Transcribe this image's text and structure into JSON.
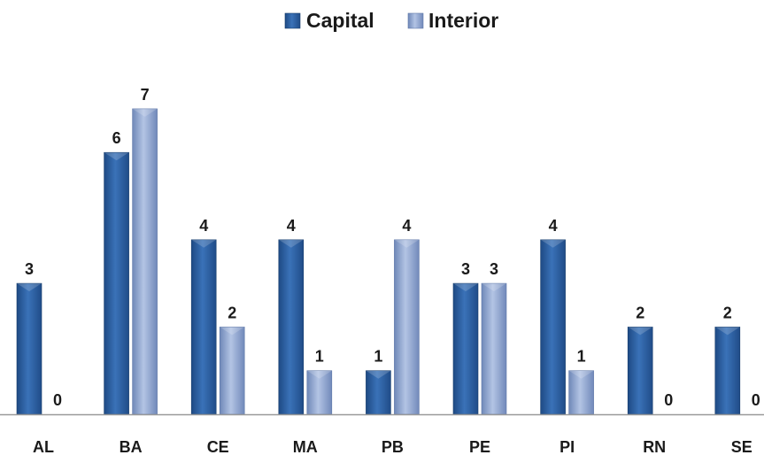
{
  "chart_data": {
    "type": "bar",
    "categories": [
      "AL",
      "BA",
      "CE",
      "MA",
      "PB",
      "PE",
      "PI",
      "RN",
      "SE"
    ],
    "series": [
      {
        "name": "Capital",
        "values": [
          3,
          6,
          4,
          4,
          1,
          3,
          4,
          2,
          2
        ],
        "color": "#2f5f9e"
      },
      {
        "name": "Interior",
        "values": [
          0,
          7,
          2,
          1,
          4,
          3,
          1,
          0,
          0
        ],
        "color": "#8fa6cf"
      }
    ],
    "ylim": [
      0,
      7
    ],
    "data_labels": true,
    "grid": false,
    "legend": "top-center"
  }
}
